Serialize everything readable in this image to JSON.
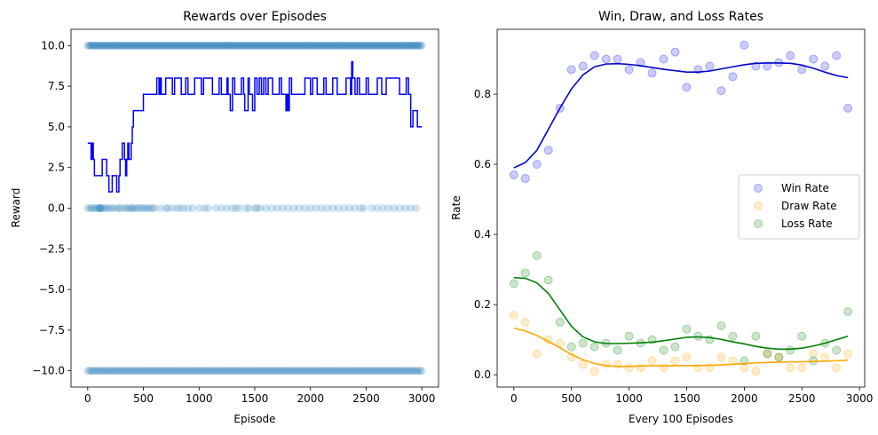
{
  "chart_data": [
    {
      "type": "scatter",
      "title": "Rewards over Episodes",
      "xlabel": "Episode",
      "ylabel": "Reward",
      "xlim": [
        -150,
        3150
      ],
      "ylim": [
        -11,
        11
      ],
      "xticks": [
        0,
        500,
        1000,
        1500,
        2000,
        2500,
        3000
      ],
      "xtick_labels": [
        "0",
        "500",
        "1000",
        "1500",
        "2000",
        "2500",
        "3000"
      ],
      "yticks": [
        10.0,
        7.5,
        5.0,
        2.5,
        0.0,
        -2.5,
        -5.0,
        -7.5,
        -10.0
      ],
      "ytick_labels": [
        "10.0",
        "7.5",
        "5.0",
        "2.5",
        "0.0",
        "−2.5",
        "−5.0",
        "−7.5",
        "−10.0"
      ],
      "grid": false,
      "series": [
        {
          "kind": "scatter",
          "color": "#1f77b4",
          "alpha": 0.2,
          "rows": [
            {
              "y": 10,
              "x_start": 0,
              "x_end": 3000,
              "step": 10
            },
            {
              "y": 0,
              "x": [
                0,
                20,
                35,
                55,
                70,
                90,
                100,
                110,
                115,
                120,
                130,
                150,
                170,
                190,
                210,
                230,
                260,
                280,
                300,
                330,
                350,
                370,
                390,
                400,
                420,
                440,
                460,
                480,
                500,
                520,
                540,
                560,
                580,
                600,
                650,
                700,
                720,
                760,
                800,
                830,
                860,
                900,
                940,
                1000,
                1050,
                1080,
                1150,
                1200,
                1250,
                1300,
                1330,
                1360,
                1420,
                1450,
                1500,
                1520,
                1550,
                1600,
                1650,
                1700,
                1750,
                1800,
                1850,
                1900,
                1950,
                2000,
                2050,
                2100,
                2150,
                2200,
                2250,
                2300,
                2350,
                2400,
                2450,
                2480,
                2550,
                2600,
                2650,
                2700,
                2750,
                2800,
                2850,
                2900,
                2950
              ]
            },
            {
              "y": -10,
              "x_start": 0,
              "x_end": 3000,
              "step": 15
            }
          ]
        },
        {
          "kind": "step-line",
          "color": "#0000ff",
          "x": [
            0,
            30,
            40,
            50,
            60,
            120,
            130,
            160,
            170,
            180,
            190,
            200,
            220,
            250,
            260,
            280,
            290,
            300,
            310,
            330,
            340,
            350,
            360,
            370,
            380,
            390,
            400,
            410,
            420,
            430,
            440,
            500,
            600,
            620,
            640,
            650,
            660,
            680,
            700,
            720,
            760,
            780,
            840,
            860,
            880,
            900,
            940,
            960,
            1000,
            1020,
            1040,
            1080,
            1120,
            1160,
            1180,
            1200,
            1250,
            1260,
            1280,
            1300,
            1320,
            1340,
            1380,
            1400,
            1410,
            1440,
            1450,
            1480,
            1500,
            1520,
            1540,
            1560,
            1580,
            1600,
            1620,
            1660,
            1680,
            1720,
            1740,
            1760,
            1770,
            1780,
            1790,
            1800,
            1810,
            1830,
            1900,
            1950,
            2000,
            2020,
            2060,
            2080,
            2120,
            2140,
            2200,
            2240,
            2280,
            2320,
            2360,
            2370,
            2380,
            2390,
            2400,
            2420,
            2440,
            2480,
            2500,
            2520,
            2600,
            2640,
            2680,
            2720,
            2760,
            2800,
            2840,
            2860,
            2880,
            2900,
            2920,
            2940,
            2960,
            3000
          ],
          "y": [
            4,
            3,
            4,
            3,
            2,
            2,
            3,
            3,
            2,
            2,
            1,
            1,
            2,
            2,
            1,
            2,
            3,
            3,
            4,
            3,
            2,
            3,
            4,
            3,
            3,
            4,
            5,
            6,
            6,
            6,
            6,
            7,
            7,
            8,
            7,
            8,
            7,
            7,
            8,
            8,
            7,
            8,
            7,
            7,
            8,
            7,
            7,
            8,
            8,
            7,
            8,
            8,
            7,
            7,
            8,
            7,
            8,
            7,
            6,
            8,
            7,
            7,
            8,
            7,
            6,
            8,
            7,
            6,
            8,
            7,
            8,
            7,
            8,
            7,
            8,
            7,
            7,
            8,
            7,
            7,
            7,
            6,
            7,
            6,
            8,
            7,
            7,
            8,
            7,
            8,
            7,
            7,
            8,
            7,
            8,
            7,
            7,
            8,
            7,
            9,
            8,
            8,
            7,
            8,
            7,
            7,
            8,
            7,
            8,
            7,
            8,
            8,
            8,
            7,
            7,
            8,
            7,
            5,
            6,
            6,
            5,
            5
          ]
        }
      ]
    },
    {
      "type": "scatter",
      "title": "Win, Draw, and Loss Rates",
      "xlabel": "Every 100 Episodes",
      "ylabel": "Rate",
      "xlim": [
        -145,
        3045
      ],
      "ylim": [
        -0.035,
        0.985
      ],
      "xticks": [
        0,
        500,
        1000,
        1500,
        2000,
        2500,
        3000
      ],
      "xtick_labels": [
        "0",
        "500",
        "1000",
        "1500",
        "2000",
        "2500",
        "3000"
      ],
      "yticks": [
        0.0,
        0.2,
        0.4,
        0.6,
        0.8
      ],
      "ytick_labels": [
        "0.0",
        "0.2",
        "0.4",
        "0.6",
        "0.8"
      ],
      "legend_position": "center-right",
      "grid": false,
      "x": [
        0,
        100,
        200,
        300,
        400,
        500,
        600,
        700,
        800,
        900,
        1000,
        1100,
        1200,
        1300,
        1400,
        1500,
        1600,
        1700,
        1800,
        1900,
        2000,
        2100,
        2200,
        2300,
        2400,
        2500,
        2600,
        2700,
        2800,
        2900
      ],
      "series": [
        {
          "name": "Win Rate",
          "color": "#0000ff",
          "line_color": "#0000cc",
          "values": [
            0.57,
            0.56,
            0.6,
            0.64,
            0.76,
            0.87,
            0.88,
            0.91,
            0.9,
            0.9,
            0.87,
            0.89,
            0.86,
            0.9,
            0.92,
            0.82,
            0.87,
            0.88,
            0.81,
            0.85,
            0.94,
            0.88,
            0.88,
            0.89,
            0.91,
            0.87,
            0.9,
            0.88,
            0.91,
            0.76
          ],
          "trend": [
            0.59,
            0.605,
            0.64,
            0.7,
            0.76,
            0.815,
            0.855,
            0.878,
            0.886,
            0.887,
            0.885,
            0.881,
            0.876,
            0.871,
            0.867,
            0.863,
            0.863,
            0.866,
            0.872,
            0.878,
            0.884,
            0.888,
            0.889,
            0.889,
            0.888,
            0.883,
            0.874,
            0.863,
            0.853,
            0.847
          ]
        },
        {
          "name": "Draw Rate",
          "color": "#ffa500",
          "line_color": "#ffa500",
          "values": [
            0.17,
            0.15,
            0.06,
            0.1,
            0.09,
            0.05,
            0.03,
            0.01,
            0.03,
            0.03,
            0.02,
            0.02,
            0.04,
            0.02,
            0.04,
            0.05,
            0.02,
            0.02,
            0.05,
            0.04,
            0.02,
            0.01,
            0.06,
            0.05,
            0.02,
            0.02,
            0.06,
            0.05,
            0.02,
            0.06
          ],
          "trend": [
            0.133,
            0.125,
            0.112,
            0.095,
            0.077,
            0.058,
            0.043,
            0.032,
            0.026,
            0.024,
            0.024,
            0.025,
            0.026,
            0.026,
            0.026,
            0.026,
            0.026,
            0.027,
            0.028,
            0.03,
            0.032,
            0.034,
            0.035,
            0.036,
            0.037,
            0.037,
            0.038,
            0.039,
            0.04,
            0.042
          ]
        },
        {
          "name": "Loss Rate",
          "color": "#008000",
          "line_color": "#008000",
          "values": [
            0.26,
            0.29,
            0.34,
            0.27,
            0.15,
            0.08,
            0.09,
            0.08,
            0.09,
            0.07,
            0.11,
            0.09,
            0.1,
            0.07,
            0.08,
            0.13,
            0.11,
            0.1,
            0.14,
            0.11,
            0.04,
            0.11,
            0.06,
            0.05,
            0.07,
            0.11,
            0.04,
            0.09,
            0.07,
            0.18
          ],
          "trend": [
            0.277,
            0.275,
            0.262,
            0.232,
            0.185,
            0.138,
            0.108,
            0.094,
            0.089,
            0.089,
            0.09,
            0.091,
            0.093,
            0.097,
            0.102,
            0.107,
            0.108,
            0.106,
            0.101,
            0.094,
            0.088,
            0.081,
            0.076,
            0.073,
            0.073,
            0.076,
            0.082,
            0.09,
            0.1,
            0.11
          ]
        }
      ]
    }
  ]
}
